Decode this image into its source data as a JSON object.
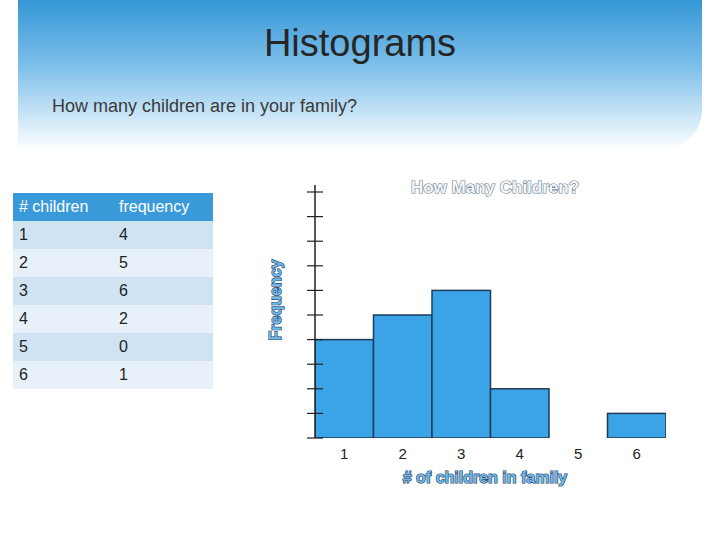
{
  "slide": {
    "title": "Histograms",
    "question": "How many children are in your family?"
  },
  "table": {
    "header": [
      "# children",
      "frequency"
    ],
    "rows": [
      [
        1,
        4
      ],
      [
        2,
        5
      ],
      [
        3,
        6
      ],
      [
        4,
        2
      ],
      [
        5,
        0
      ],
      [
        6,
        1
      ]
    ]
  },
  "chart_data": {
    "type": "histogram",
    "title": "How Many Children?",
    "x_label": "# of children in family",
    "y_label": "Frequency",
    "bins": [
      0.5,
      1.5,
      2.5,
      3.5,
      4.5,
      5.5,
      6.5
    ],
    "values": [
      4,
      5,
      6,
      2,
      0,
      1
    ],
    "color": "#3ba4e6",
    "xlim": [
      0.5,
      6.5
    ],
    "ylim": [
      0,
      10
    ],
    "xticks": [
      1,
      2,
      3,
      4,
      5,
      6
    ],
    "yticks": [
      0,
      1,
      2,
      3,
      4,
      5,
      6,
      7,
      8,
      9,
      10
    ],
    "grid": false,
    "tick_labels": "x"
  }
}
